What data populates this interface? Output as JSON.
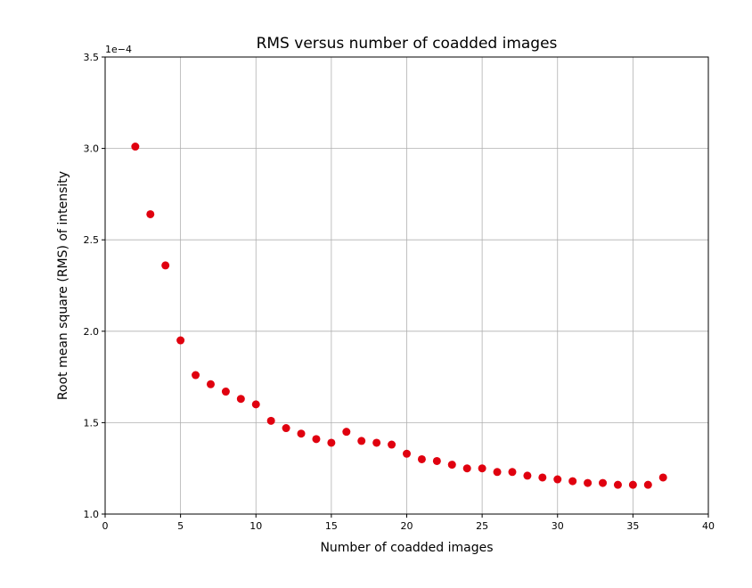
{
  "chart_data": {
    "type": "scatter",
    "title": "RMS versus number of coadded images",
    "xlabel": "Number of coadded images",
    "ylabel": "Root mean square (RMS) of intensity",
    "y_offset_label": "1e−4",
    "xlim": [
      0,
      40
    ],
    "ylim": [
      1.0,
      3.5
    ],
    "x_ticks": [
      0,
      5,
      10,
      15,
      20,
      25,
      30,
      35,
      40
    ],
    "x_tick_labels": [
      "0",
      "5",
      "10",
      "15",
      "20",
      "25",
      "30",
      "35",
      "40"
    ],
    "y_ticks": [
      1.0,
      1.5,
      2.0,
      2.5,
      3.0,
      3.5
    ],
    "y_tick_labels": [
      "1.0",
      "1.5",
      "2.0",
      "2.5",
      "3.0",
      "3.5"
    ],
    "grid": true,
    "marker_color": "#e0000f",
    "series": [
      {
        "x": [
          2,
          3,
          4,
          5,
          6,
          7,
          8,
          9,
          10,
          11,
          12,
          13,
          14,
          15,
          16,
          17,
          18,
          19,
          20,
          21,
          22,
          23,
          24,
          25,
          26,
          27,
          28,
          29,
          30,
          31,
          32,
          33,
          34,
          35,
          36,
          37
        ],
        "y": [
          3.01,
          2.64,
          2.36,
          1.95,
          1.76,
          1.71,
          1.67,
          1.63,
          1.6,
          1.51,
          1.47,
          1.44,
          1.41,
          1.39,
          1.45,
          1.4,
          1.39,
          1.38,
          1.33,
          1.3,
          1.29,
          1.27,
          1.25,
          1.25,
          1.23,
          1.23,
          1.21,
          1.2,
          1.19,
          1.18,
          1.17,
          1.17,
          1.16,
          1.16,
          1.16,
          1.2
        ]
      }
    ]
  }
}
